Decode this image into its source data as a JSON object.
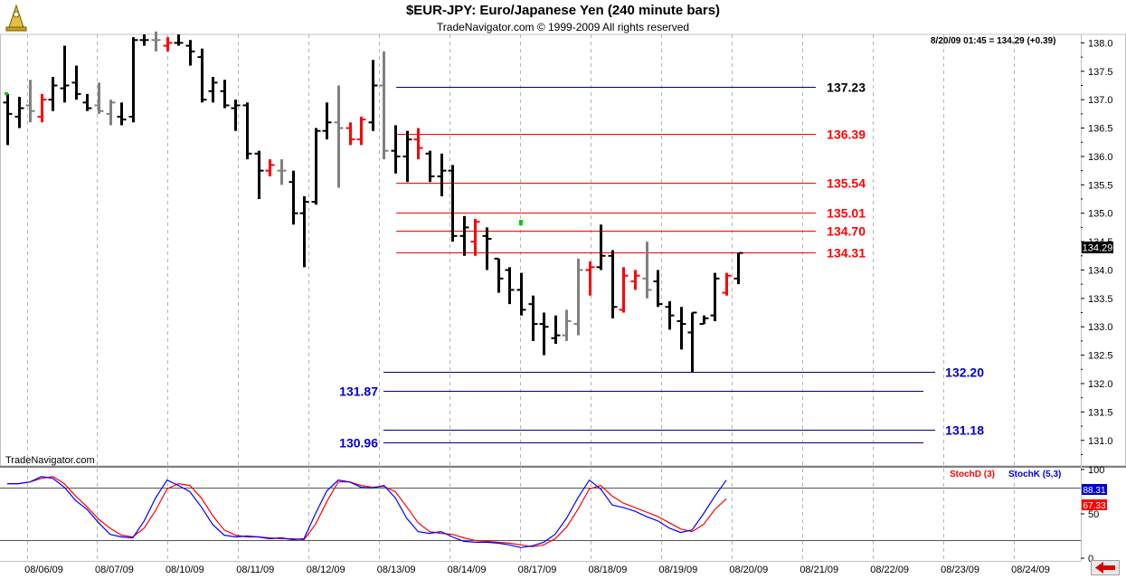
{
  "title": "$EUR-JPY:  Euro/Japanese Yen  (240 minute bars)",
  "subtitle": "TradeNavigator.com © 1999-2009 All rights reserved",
  "price_readout": "8/20/09 01:45 = 134.29 (+0.39)",
  "watermark": "TradeNavigator.com",
  "last_price_tag": "134.29",
  "indicator_legend": {
    "stoch_d": "StochD (3)",
    "stoch_k": "StochK (5,3)"
  },
  "indicator_tags": {
    "k_value": "88.31",
    "d_value": "67.33"
  },
  "colors": {
    "up_bar": "#ff0000",
    "down_bar": "#000000",
    "neutral_bar": "#808080",
    "resistance_line": "#ff0000",
    "support_line": "#000080",
    "stoch_d": "#ff0000",
    "stoch_k": "#0000ff",
    "signal": "#00cc00"
  },
  "chart_data": {
    "type": "ohlc",
    "bar_interval": "240 minute",
    "y_range": [
      130.55,
      138.15
    ],
    "price_ticks": [
      "138.0",
      "137.5",
      "137.0",
      "136.5",
      "136.0",
      "135.5",
      "135.0",
      "134.5",
      "134.0",
      "133.5",
      "133.0",
      "132.5",
      "132.0",
      "131.5",
      "131.0"
    ],
    "date_labels": [
      "08/06/09",
      "08/07/09",
      "08/10/09",
      "08/11/09",
      "08/12/09",
      "08/13/09",
      "08/14/09",
      "08/17/09",
      "08/18/09",
      "08/19/09",
      "08/20/09",
      "08/21/09",
      "08/22/09",
      "08/23/09",
      "08/24/09"
    ],
    "bars": [
      {
        "o": 136.95,
        "h": 137.1,
        "l": 136.2,
        "c": 136.75,
        "col": "black"
      },
      {
        "o": 136.7,
        "h": 137.05,
        "l": 136.5,
        "c": 136.85,
        "col": "black"
      },
      {
        "o": 136.9,
        "h": 137.35,
        "l": 136.6,
        "c": 136.8,
        "col": "gray"
      },
      {
        "o": 136.7,
        "h": 137.1,
        "l": 136.6,
        "c": 137.0,
        "col": "red"
      },
      {
        "o": 137.0,
        "h": 137.4,
        "l": 136.8,
        "c": 137.25,
        "col": "black"
      },
      {
        "o": 137.2,
        "h": 137.95,
        "l": 136.95,
        "c": 137.25,
        "col": "black"
      },
      {
        "o": 137.3,
        "h": 137.6,
        "l": 137.0,
        "c": 137.1,
        "col": "black"
      },
      {
        "o": 136.95,
        "h": 137.1,
        "l": 136.8,
        "c": 136.85,
        "col": "black"
      },
      {
        "o": 136.9,
        "h": 137.3,
        "l": 136.75,
        "c": 136.8,
        "col": "gray"
      },
      {
        "o": 136.75,
        "h": 137.0,
        "l": 136.55,
        "c": 136.95,
        "col": "gray"
      },
      {
        "o": 136.7,
        "h": 136.95,
        "l": 136.55,
        "c": 136.65,
        "col": "black"
      },
      {
        "o": 136.7,
        "h": 138.1,
        "l": 136.6,
        "c": 138.05,
        "col": "black"
      },
      {
        "o": 138.05,
        "h": 138.15,
        "l": 137.95,
        "c": 138.05,
        "col": "black"
      },
      {
        "o": 138.05,
        "h": 138.2,
        "l": 137.85,
        "c": 138.05,
        "col": "gray"
      },
      {
        "o": 137.95,
        "h": 138.1,
        "l": 137.85,
        "c": 138.0,
        "col": "red"
      },
      {
        "o": 138.0,
        "h": 138.15,
        "l": 137.95,
        "c": 138.0,
        "col": "black"
      },
      {
        "o": 137.95,
        "h": 138.05,
        "l": 137.6,
        "c": 137.85,
        "col": "black"
      },
      {
        "o": 137.75,
        "h": 137.9,
        "l": 136.95,
        "c": 137.0,
        "col": "black"
      },
      {
        "o": 137.15,
        "h": 137.4,
        "l": 136.95,
        "c": 137.3,
        "col": "black"
      },
      {
        "o": 137.15,
        "h": 137.35,
        "l": 136.85,
        "c": 136.9,
        "col": "black"
      },
      {
        "o": 136.85,
        "h": 137.0,
        "l": 136.45,
        "c": 136.9,
        "col": "black"
      },
      {
        "o": 136.9,
        "h": 136.95,
        "l": 135.95,
        "c": 136.05,
        "col": "black"
      },
      {
        "o": 136.05,
        "h": 136.1,
        "l": 135.25,
        "c": 135.75,
        "col": "black"
      },
      {
        "o": 135.75,
        "h": 135.95,
        "l": 135.65,
        "c": 135.85,
        "col": "red"
      },
      {
        "o": 135.75,
        "h": 135.95,
        "l": 135.5,
        "c": 135.75,
        "col": "gray"
      },
      {
        "o": 135.55,
        "h": 135.75,
        "l": 134.8,
        "c": 135.0,
        "col": "black"
      },
      {
        "o": 135.0,
        "h": 135.3,
        "l": 134.05,
        "c": 135.2,
        "col": "black"
      },
      {
        "o": 135.2,
        "h": 136.5,
        "l": 135.15,
        "c": 136.45,
        "col": "black"
      },
      {
        "o": 136.45,
        "h": 136.95,
        "l": 136.3,
        "c": 136.6,
        "col": "black"
      },
      {
        "o": 136.6,
        "h": 137.25,
        "l": 135.45,
        "c": 136.5,
        "col": "gray"
      },
      {
        "o": 136.5,
        "h": 136.6,
        "l": 136.2,
        "c": 136.3,
        "col": "red"
      },
      {
        "o": 136.3,
        "h": 136.7,
        "l": 136.2,
        "c": 136.65,
        "col": "red"
      },
      {
        "o": 136.6,
        "h": 137.7,
        "l": 136.45,
        "c": 137.25,
        "col": "black"
      },
      {
        "o": 137.25,
        "h": 137.85,
        "l": 135.95,
        "c": 136.1,
        "col": "gray"
      },
      {
        "o": 136.1,
        "h": 136.55,
        "l": 135.7,
        "c": 136.0,
        "col": "black"
      },
      {
        "o": 136.0,
        "h": 136.45,
        "l": 135.55,
        "c": 136.3,
        "col": "black"
      },
      {
        "o": 136.3,
        "h": 136.5,
        "l": 135.95,
        "c": 136.15,
        "col": "red"
      },
      {
        "o": 136.05,
        "h": 136.1,
        "l": 135.55,
        "c": 135.65,
        "col": "black"
      },
      {
        "o": 135.65,
        "h": 136.05,
        "l": 135.3,
        "c": 135.75,
        "col": "black"
      },
      {
        "o": 135.75,
        "h": 135.85,
        "l": 134.5,
        "c": 134.6,
        "col": "black"
      },
      {
        "o": 134.6,
        "h": 134.95,
        "l": 134.25,
        "c": 134.75,
        "col": "black"
      },
      {
        "o": 134.5,
        "h": 134.9,
        "l": 134.25,
        "c": 134.85,
        "col": "red"
      },
      {
        "o": 134.6,
        "h": 134.75,
        "l": 134.0,
        "c": 134.55,
        "col": "black"
      },
      {
        "o": 134.2,
        "h": 134.2,
        "l": 133.6,
        "c": 133.85,
        "col": "black"
      },
      {
        "o": 134.0,
        "h": 134.05,
        "l": 133.4,
        "c": 133.65,
        "col": "black"
      },
      {
        "o": 133.65,
        "h": 133.95,
        "l": 133.2,
        "c": 133.3,
        "col": "black"
      },
      {
        "o": 133.4,
        "h": 133.55,
        "l": 132.75,
        "c": 133.05,
        "col": "black"
      },
      {
        "o": 133.05,
        "h": 133.25,
        "l": 132.5,
        "c": 133.0,
        "col": "black"
      },
      {
        "o": 132.8,
        "h": 133.2,
        "l": 132.7,
        "c": 132.85,
        "col": "black"
      },
      {
        "o": 132.85,
        "h": 133.3,
        "l": 132.75,
        "c": 133.1,
        "col": "gray"
      },
      {
        "o": 133.05,
        "h": 134.2,
        "l": 132.85,
        "c": 134.0,
        "col": "gray"
      },
      {
        "o": 134.0,
        "h": 134.15,
        "l": 133.55,
        "c": 134.05,
        "col": "red"
      },
      {
        "o": 134.05,
        "h": 134.8,
        "l": 134.0,
        "c": 134.25,
        "col": "black"
      },
      {
        "o": 134.25,
        "h": 134.35,
        "l": 133.15,
        "c": 133.35,
        "col": "black"
      },
      {
        "o": 133.3,
        "h": 134.05,
        "l": 133.25,
        "c": 133.9,
        "col": "red"
      },
      {
        "o": 133.8,
        "h": 134.0,
        "l": 133.65,
        "c": 133.9,
        "col": "red"
      },
      {
        "o": 133.85,
        "h": 134.5,
        "l": 133.5,
        "c": 133.65,
        "col": "gray"
      },
      {
        "o": 133.8,
        "h": 134.0,
        "l": 133.35,
        "c": 133.4,
        "col": "black"
      },
      {
        "o": 133.35,
        "h": 133.45,
        "l": 132.95,
        "c": 133.2,
        "col": "black"
      },
      {
        "o": 133.1,
        "h": 133.35,
        "l": 132.6,
        "c": 133.05,
        "col": "black"
      },
      {
        "o": 132.9,
        "h": 133.25,
        "l": 132.2,
        "c": 133.25,
        "col": "black"
      },
      {
        "o": 133.05,
        "h": 133.2,
        "l": 133.05,
        "c": 133.15,
        "col": "black"
      },
      {
        "o": 133.2,
        "h": 133.95,
        "l": 133.1,
        "c": 133.85,
        "col": "black"
      },
      {
        "o": 133.6,
        "h": 133.95,
        "l": 133.55,
        "c": 133.9,
        "col": "red"
      },
      {
        "o": 133.85,
        "h": 134.3,
        "l": 133.75,
        "c": 134.3,
        "col": "black"
      }
    ],
    "levels": [
      {
        "price": 137.23,
        "label": "137.23",
        "color": "#000080",
        "label_color": "#000000",
        "x_start": "08/13/09",
        "side": "right",
        "style": "upper"
      },
      {
        "price": 136.39,
        "label": "136.39",
        "color": "#ff0000",
        "label_color": "#ff0000",
        "x_start": "08/13/09",
        "side": "right",
        "style": "upper"
      },
      {
        "price": 135.54,
        "label": "135.54",
        "color": "#ff0000",
        "label_color": "#ff0000",
        "x_start": "08/13/09",
        "side": "right",
        "style": "upper"
      },
      {
        "price": 135.01,
        "label": "135.01",
        "color": "#ff0000",
        "label_color": "#ff0000",
        "x_start": "08/13/09",
        "side": "right",
        "style": "upper"
      },
      {
        "price": 134.7,
        "label": "134.70",
        "color": "#ff0000",
        "label_color": "#ff0000",
        "x_start": "08/13/09",
        "side": "right",
        "style": "upper"
      },
      {
        "price": 134.31,
        "label": "134.31",
        "color": "#ff0000",
        "label_color": "#ff0000",
        "x_start": "08/13/09",
        "side": "right",
        "style": "upper"
      },
      {
        "price": 132.2,
        "label": "132.20",
        "color": "#000080",
        "label_color": "#0000cc",
        "side": "right",
        "style": "lower"
      },
      {
        "price": 131.87,
        "label": "131.87",
        "color": "#000080",
        "label_color": "#0000cc",
        "side": "left",
        "style": "lower"
      },
      {
        "price": 131.18,
        "label": "131.18",
        "color": "#000080",
        "label_color": "#0000cc",
        "side": "right",
        "style": "lower"
      },
      {
        "price": 130.96,
        "label": "130.96",
        "color": "#000080",
        "label_color": "#0000cc",
        "side": "left",
        "style": "lower"
      }
    ],
    "indicator": {
      "y_range": [
        -3,
        103
      ],
      "ticks": [
        "100",
        "50",
        "0"
      ],
      "reference_lines": [
        80,
        20
      ],
      "stoch_k": [
        84,
        84,
        86,
        92,
        90,
        80,
        65,
        55,
        40,
        27,
        24,
        23,
        42,
        68,
        88,
        82,
        75,
        58,
        38,
        26,
        24,
        25,
        24,
        22,
        23,
        21,
        22,
        50,
        76,
        88,
        86,
        80,
        79,
        82,
        68,
        45,
        30,
        28,
        30,
        24,
        19,
        18,
        18,
        17,
        15,
        12,
        14,
        18,
        27,
        45,
        68,
        88,
        78,
        60,
        57,
        53,
        47,
        42,
        34,
        29,
        32,
        50,
        70,
        88
      ],
      "stoch_d": [
        84,
        84,
        86,
        90,
        92,
        84,
        70,
        58,
        44,
        34,
        26,
        24,
        34,
        54,
        78,
        84,
        82,
        68,
        48,
        32,
        26,
        24,
        24,
        23,
        22,
        22,
        21,
        38,
        64,
        86,
        86,
        82,
        80,
        81,
        75,
        58,
        40,
        30,
        28,
        27,
        23,
        20,
        19,
        18,
        17,
        15,
        13,
        15,
        22,
        35,
        55,
        78,
        82,
        70,
        62,
        57,
        52,
        47,
        40,
        33,
        30,
        38,
        55,
        67
      ]
    }
  }
}
